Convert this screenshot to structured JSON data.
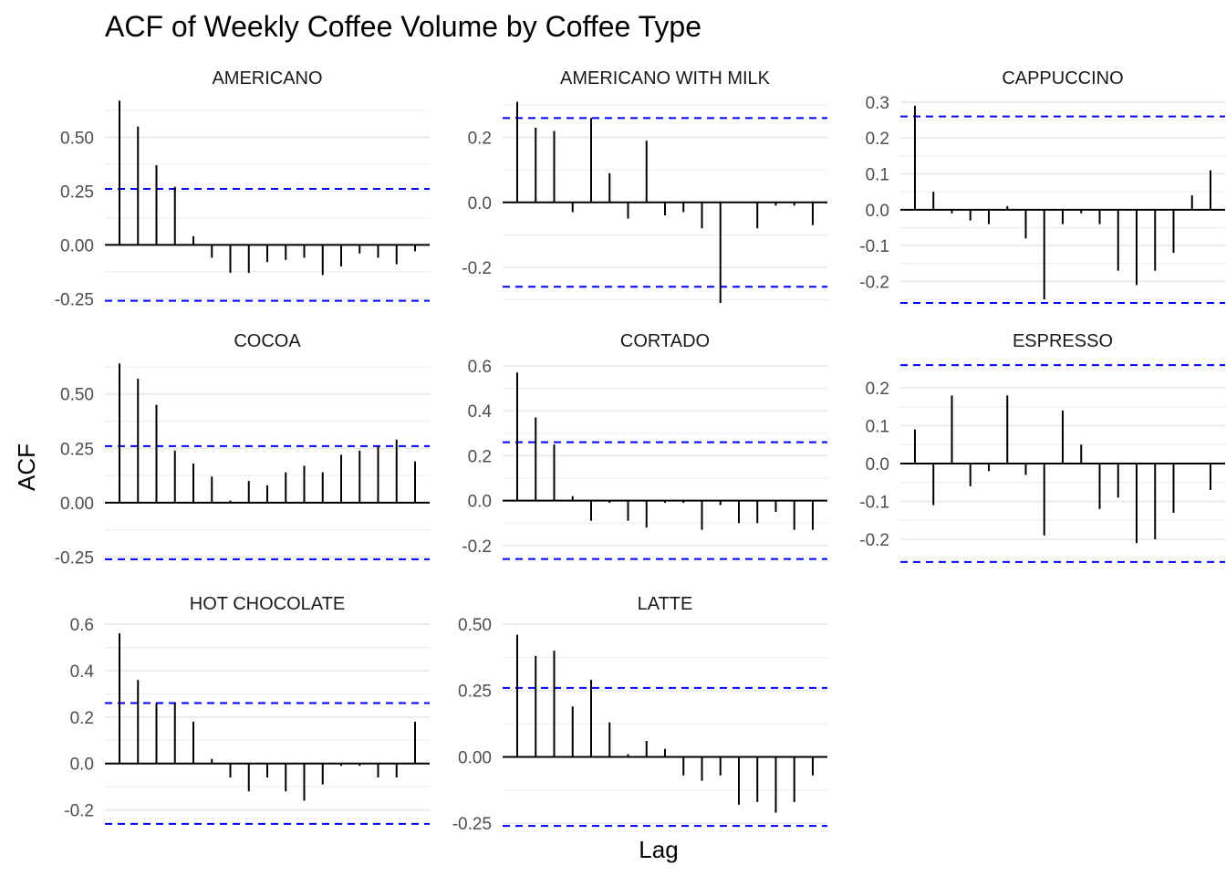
{
  "chart_data": {
    "type": "bar",
    "title": "ACF of Weekly Coffee Volume by Coffee Type",
    "xlabel": "Lag",
    "ylabel": "ACF",
    "confidence_band": 0.26,
    "grid": true,
    "colors": {
      "bars": "#000000",
      "band": "#0000ff",
      "grid": "#ebebeb"
    },
    "panels": [
      {
        "name": "AMERICANO",
        "ylim": [
          -0.27,
          0.68
        ],
        "yticks": [
          -0.25,
          0.0,
          0.25,
          0.5
        ],
        "ytick_labels": [
          "-0.25",
          "0.00",
          "0.25",
          "0.50"
        ],
        "values": [
          0.67,
          0.55,
          0.37,
          0.27,
          0.04,
          -0.06,
          -0.13,
          -0.13,
          -0.08,
          -0.07,
          -0.06,
          -0.14,
          -0.1,
          -0.04,
          -0.06,
          -0.09,
          -0.03
        ]
      },
      {
        "name": "AMERICANO WITH MILK",
        "ylim": [
          -0.31,
          0.32
        ],
        "yticks": [
          -0.2,
          0.0,
          0.2
        ],
        "ytick_labels": [
          "-0.2",
          "0.0",
          "0.2"
        ],
        "values": [
          0.31,
          0.23,
          0.22,
          -0.03,
          0.26,
          0.09,
          -0.05,
          0.19,
          -0.04,
          -0.03,
          -0.08,
          -0.31,
          0.0,
          -0.08,
          -0.01,
          -0.01,
          -0.07
        ]
      },
      {
        "name": "CAPPUCCINO",
        "ylim": [
          -0.26,
          0.31
        ],
        "yticks": [
          -0.2,
          -0.1,
          0.0,
          0.1,
          0.2,
          0.3
        ],
        "ytick_labels": [
          "-0.2",
          "-0.1",
          "0.0",
          "0.1",
          "0.2",
          "0.3"
        ],
        "values": [
          0.29,
          0.05,
          -0.01,
          -0.03,
          -0.04,
          0.01,
          -0.08,
          -0.25,
          -0.04,
          -0.01,
          -0.04,
          -0.17,
          -0.21,
          -0.17,
          -0.12,
          0.04,
          0.11
        ]
      },
      {
        "name": "COCOA",
        "ylim": [
          -0.29,
          0.65
        ],
        "yticks": [
          -0.25,
          0.0,
          0.25,
          0.5
        ],
        "ytick_labels": [
          "-0.25",
          "0.00",
          "0.25",
          "0.50"
        ],
        "values": [
          0.64,
          0.57,
          0.45,
          0.24,
          0.18,
          0.12,
          0.01,
          0.1,
          0.08,
          0.14,
          0.17,
          0.14,
          0.22,
          0.24,
          0.26,
          0.29,
          0.19
        ]
      },
      {
        "name": "CORTADO",
        "ylim": [
          -0.29,
          0.62
        ],
        "yticks": [
          -0.2,
          0.0,
          0.2,
          0.4,
          0.6
        ],
        "ytick_labels": [
          "-0.2",
          "0.0",
          "0.2",
          "0.4",
          "0.6"
        ],
        "values": [
          0.57,
          0.37,
          0.25,
          0.02,
          -0.09,
          -0.01,
          -0.09,
          -0.12,
          -0.01,
          -0.01,
          -0.13,
          -0.02,
          -0.1,
          -0.1,
          -0.05,
          -0.13,
          -0.13
        ]
      },
      {
        "name": "ESPRESSO",
        "ylim": [
          -0.27,
          0.27
        ],
        "yticks": [
          -0.2,
          -0.1,
          0.0,
          0.1,
          0.2
        ],
        "ytick_labels": [
          "-0.2",
          "-0.1",
          "0.0",
          "0.1",
          "0.2"
        ],
        "values": [
          0.09,
          -0.11,
          0.18,
          -0.06,
          -0.02,
          0.18,
          -0.03,
          -0.19,
          0.14,
          0.05,
          -0.12,
          -0.09,
          -0.21,
          -0.2,
          -0.13,
          0.0,
          -0.07
        ]
      },
      {
        "name": "HOT CHOCOLATE",
        "ylim": [
          -0.28,
          0.6
        ],
        "yticks": [
          -0.2,
          0.0,
          0.2,
          0.4,
          0.6
        ],
        "ytick_labels": [
          "-0.2",
          "0.0",
          "0.2",
          "0.4",
          "0.6"
        ],
        "values": [
          0.56,
          0.36,
          0.26,
          0.26,
          0.18,
          0.02,
          -0.06,
          -0.12,
          -0.06,
          -0.12,
          -0.16,
          -0.09,
          -0.01,
          -0.01,
          -0.06,
          -0.06,
          0.18
        ]
      },
      {
        "name": "LATTE",
        "ylim": [
          -0.27,
          0.5
        ],
        "yticks": [
          -0.25,
          0.0,
          0.25,
          0.5
        ],
        "ytick_labels": [
          "-0.25",
          "0.00",
          "0.25",
          "0.50"
        ],
        "values": [
          0.46,
          0.38,
          0.4,
          0.19,
          0.29,
          0.13,
          0.01,
          0.06,
          0.03,
          -0.07,
          -0.09,
          -0.07,
          -0.18,
          -0.17,
          -0.21,
          -0.17,
          -0.07
        ]
      }
    ]
  }
}
